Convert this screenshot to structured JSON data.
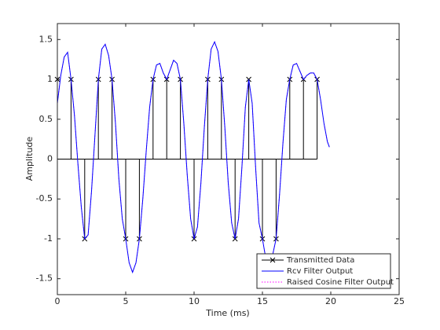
{
  "chart_data": {
    "type": "stem-line",
    "xlabel": "Time (ms)",
    "ylabel": "Amplitude",
    "xlim": [
      0,
      25
    ],
    "ylim": [
      -1.7,
      1.7
    ],
    "xticks": [
      0,
      5,
      10,
      15,
      20,
      25
    ],
    "yticks": [
      -1.5,
      -1,
      -0.5,
      0,
      0.5,
      1,
      1.5
    ],
    "legend": "lower right",
    "series": [
      {
        "name": "Transmitted Data",
        "kind": "stem",
        "color": "#000000",
        "marker": "x",
        "x": [
          0,
          1,
          2,
          3,
          4,
          5,
          6,
          7,
          8,
          9,
          10,
          11,
          12,
          13,
          14,
          15,
          16,
          17,
          18,
          19
        ],
        "values": [
          1,
          1,
          -1,
          1,
          1,
          -1,
          -1,
          1,
          1,
          1,
          -1,
          1,
          1,
          -1,
          1,
          -1,
          -1,
          1,
          1,
          1
        ]
      },
      {
        "name": "Raised Cosine Filter Output",
        "kind": "line",
        "color": "#ff00ff",
        "dash": "dotted",
        "x": [
          0,
          0.25,
          0.5,
          0.75,
          1,
          1.25,
          1.5,
          1.75,
          2,
          2.25,
          2.5,
          2.75,
          3,
          3.25,
          3.5,
          3.75,
          4,
          4.25,
          4.5,
          4.75,
          5,
          5.25,
          5.5,
          5.75,
          6,
          6.25,
          6.5,
          6.75,
          7,
          7.25,
          7.5,
          7.75,
          8,
          8.25,
          8.5,
          8.75,
          9,
          9.25,
          9.5,
          9.75,
          10,
          10.25,
          10.5,
          10.75,
          11,
          11.25,
          11.5,
          11.75,
          12,
          12.25,
          12.5,
          12.75,
          13,
          13.25,
          13.5,
          13.75,
          14,
          14.25,
          14.5,
          14.75,
          15,
          15.25,
          15.5,
          15.75,
          16,
          16.25,
          16.5,
          16.75,
          17,
          17.25,
          17.5,
          17.75,
          18,
          18.25,
          18.5,
          18.75,
          19,
          19.25,
          19.5,
          19.75,
          19.9
        ],
        "values": [
          0.7,
          1.05,
          1.28,
          1.34,
          1.0,
          0.55,
          -0.05,
          -0.6,
          -1.0,
          -0.95,
          -0.4,
          0.3,
          1.0,
          1.38,
          1.44,
          1.3,
          1.0,
          0.45,
          -0.25,
          -0.75,
          -1.0,
          -1.3,
          -1.42,
          -1.3,
          -1.0,
          -0.5,
          0.1,
          0.65,
          1.0,
          1.18,
          1.2,
          1.08,
          1.0,
          1.12,
          1.24,
          1.2,
          1.0,
          0.45,
          -0.2,
          -0.75,
          -1.0,
          -0.85,
          -0.3,
          0.4,
          1.0,
          1.38,
          1.47,
          1.35,
          1.0,
          0.4,
          -0.3,
          -0.8,
          -1.0,
          -0.75,
          -0.1,
          0.65,
          1.0,
          0.7,
          -0.1,
          -0.8,
          -1.0,
          -1.25,
          -1.3,
          -1.2,
          -1.0,
          -0.45,
          0.2,
          0.75,
          1.0,
          1.18,
          1.2,
          1.1,
          1.0,
          1.05,
          1.08,
          1.08,
          1.0,
          0.75,
          0.45,
          0.22,
          0.15
        ]
      },
      {
        "name": "Rcv Filter Output",
        "kind": "line",
        "color": "#0000ff",
        "dash": "solid",
        "x": [
          0,
          0.25,
          0.5,
          0.75,
          1,
          1.25,
          1.5,
          1.75,
          2,
          2.25,
          2.5,
          2.75,
          3,
          3.25,
          3.5,
          3.75,
          4,
          4.25,
          4.5,
          4.75,
          5,
          5.25,
          5.5,
          5.75,
          6,
          6.25,
          6.5,
          6.75,
          7,
          7.25,
          7.5,
          7.75,
          8,
          8.25,
          8.5,
          8.75,
          9,
          9.25,
          9.5,
          9.75,
          10,
          10.25,
          10.5,
          10.75,
          11,
          11.25,
          11.5,
          11.75,
          12,
          12.25,
          12.5,
          12.75,
          13,
          13.25,
          13.5,
          13.75,
          14,
          14.25,
          14.5,
          14.75,
          15,
          15.25,
          15.5,
          15.75,
          16,
          16.25,
          16.5,
          16.75,
          17,
          17.25,
          17.5,
          17.75,
          18,
          18.25,
          18.5,
          18.75,
          19,
          19.25,
          19.5,
          19.75,
          19.9
        ],
        "values": [
          0.7,
          1.05,
          1.28,
          1.34,
          1.0,
          0.55,
          -0.05,
          -0.6,
          -1.0,
          -0.95,
          -0.4,
          0.3,
          1.0,
          1.38,
          1.44,
          1.3,
          1.0,
          0.45,
          -0.25,
          -0.75,
          -1.0,
          -1.3,
          -1.42,
          -1.3,
          -1.0,
          -0.5,
          0.1,
          0.65,
          1.0,
          1.18,
          1.2,
          1.08,
          1.0,
          1.12,
          1.24,
          1.2,
          1.0,
          0.45,
          -0.2,
          -0.75,
          -1.0,
          -0.85,
          -0.3,
          0.4,
          1.0,
          1.38,
          1.47,
          1.35,
          1.0,
          0.4,
          -0.3,
          -0.8,
          -1.0,
          -0.75,
          -0.1,
          0.65,
          1.0,
          0.7,
          -0.1,
          -0.8,
          -1.0,
          -1.25,
          -1.3,
          -1.2,
          -1.0,
          -0.45,
          0.2,
          0.75,
          1.0,
          1.18,
          1.2,
          1.1,
          1.0,
          1.05,
          1.08,
          1.08,
          1.0,
          0.75,
          0.45,
          0.22,
          0.15
        ]
      }
    ],
    "legend_order": [
      0,
      2,
      1
    ]
  }
}
